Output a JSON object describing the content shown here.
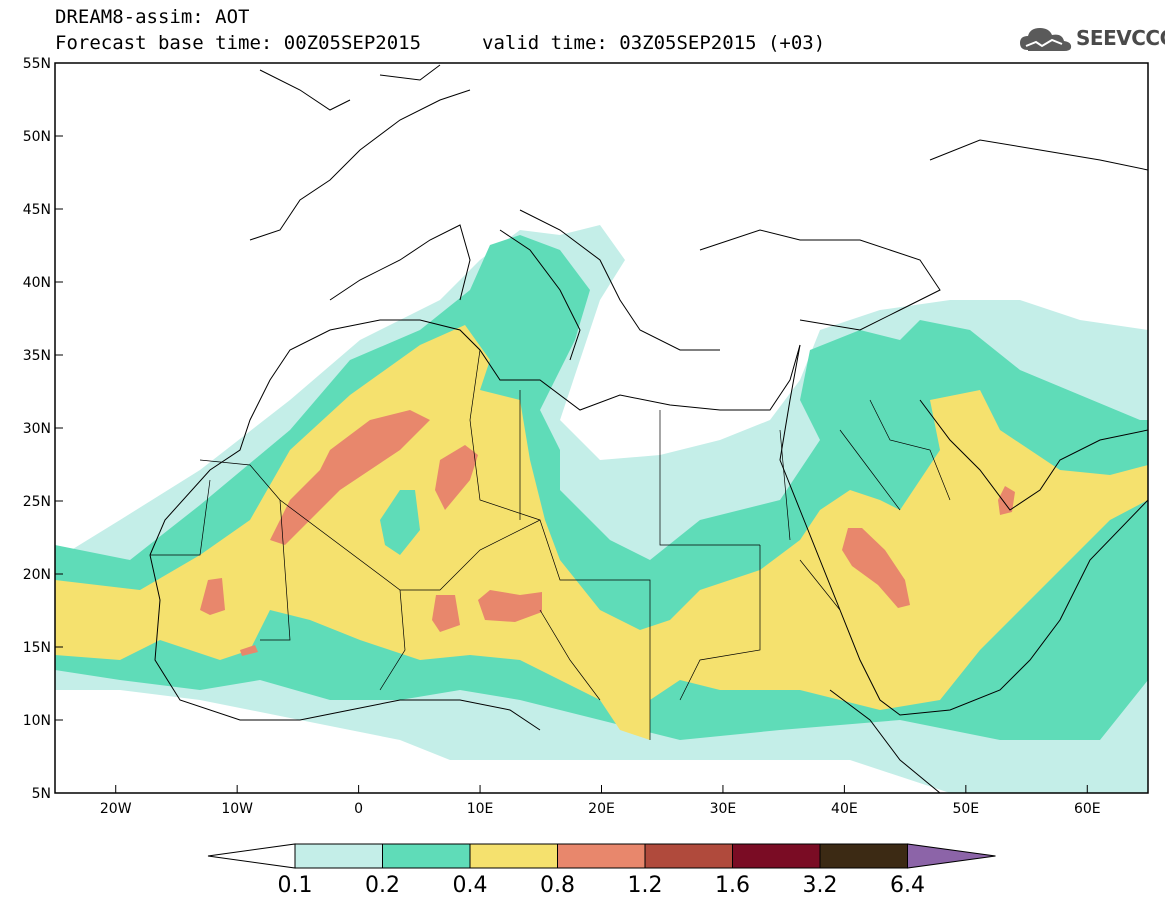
{
  "header": {
    "title_line1": "DREAM8-assim: AOT",
    "forecast_base": "Forecast base time: 00Z05SEP2015",
    "valid_time": "valid time: 03Z05SEP2015 (+03)",
    "logo_text": "SEEVCCC",
    "logo_icon": "cloud-icon"
  },
  "axes": {
    "lon_labels": [
      "20W",
      "10W",
      "0",
      "10E",
      "20E",
      "30E",
      "40E",
      "50E",
      "60E"
    ],
    "lat_labels": [
      "55N",
      "50N",
      "45N",
      "40N",
      "35N",
      "30N",
      "25N",
      "20N",
      "15N",
      "10N",
      "5N"
    ],
    "lon_range": [
      -25,
      65
    ],
    "lat_range": [
      5,
      55
    ]
  },
  "legend": {
    "labels": [
      "0.1",
      "0.2",
      "0.4",
      "0.8",
      "1.2",
      "1.6",
      "3.2",
      "6.4"
    ],
    "colors": [
      "#c4eee8",
      "#5fdcb8",
      "#f5e16e",
      "#e8876c",
      "#b04a3c",
      "#7a0c24",
      "#3c2a14",
      "#8c64a8"
    ]
  },
  "colors": {
    "aot_0_1": "#c4eee8",
    "aot_0_2": "#5fdcb8",
    "aot_0_4": "#f5e16e",
    "aot_0_8": "#e8876c",
    "coastline": "#000000"
  }
}
